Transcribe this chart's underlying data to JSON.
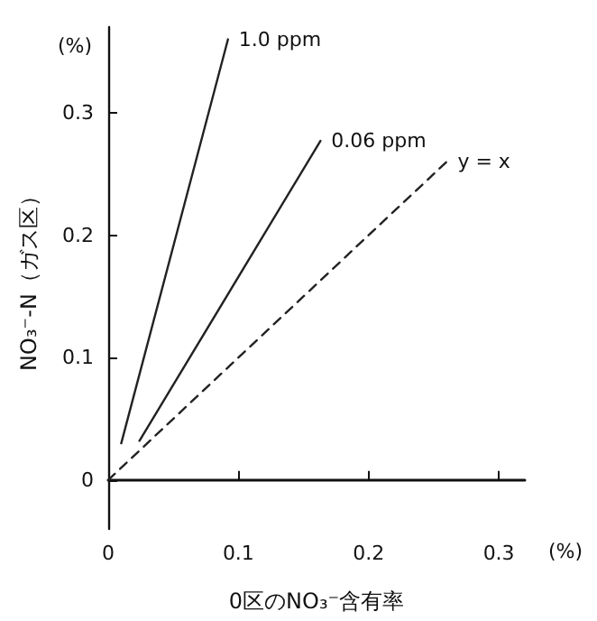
{
  "chart_data": {
    "type": "line",
    "xlabel": "0区のNO₃⁻含有率",
    "ylabel": "NO₃⁻-N（ガス区）",
    "annotations": [
      "(%)",
      "(%)"
    ],
    "xlim": [
      0,
      0.32
    ],
    "ylim": [
      -0.04,
      0.37
    ],
    "xticks": [
      0,
      0.1,
      0.2,
      0.3
    ],
    "yticks": [
      0,
      0.1,
      0.2,
      0.3
    ],
    "legend": false,
    "marker": "none",
    "series": [
      {
        "name": "1.0 ppm",
        "color": "#222222",
        "line_style": "solid",
        "x": [
          0.01,
          0.092
        ],
        "values": [
          0.03,
          0.36
        ]
      },
      {
        "name": "0.06 ppm",
        "color": "#222222",
        "line_style": "solid",
        "x": [
          0.024,
          0.163
        ],
        "values": [
          0.032,
          0.277
        ]
      },
      {
        "name": "y = x",
        "color": "#222222",
        "line_style": "dashed",
        "x": [
          0,
          0.26
        ],
        "values": [
          0,
          0.26
        ]
      }
    ]
  }
}
